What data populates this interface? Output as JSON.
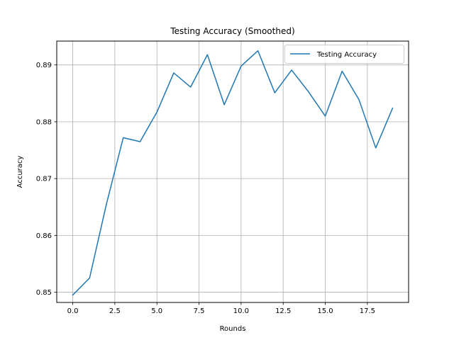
{
  "chart_data": {
    "type": "line",
    "title": "Testing Accuracy (Smoothed)",
    "xlabel": "Rounds",
    "ylabel": "Accuracy",
    "grid": true,
    "legend_position": "top-right",
    "xlim": [
      -0.95,
      19.95
    ],
    "ylim": [
      0.8482,
      0.8942
    ],
    "x_ticks": [
      0.0,
      2.5,
      5.0,
      7.5,
      10.0,
      12.5,
      15.0,
      17.5
    ],
    "x_tick_labels": [
      "0.0",
      "2.5",
      "5.0",
      "7.5",
      "10.0",
      "12.5",
      "15.0",
      "17.5"
    ],
    "y_ticks": [
      0.85,
      0.86,
      0.87,
      0.88,
      0.89
    ],
    "y_tick_labels": [
      "0.85",
      "0.86",
      "0.87",
      "0.88",
      "0.89"
    ],
    "series": [
      {
        "name": "Testing Accuracy",
        "color": "#1f77b4",
        "x": [
          0,
          1,
          2,
          3,
          4,
          5,
          6,
          7,
          8,
          9,
          10,
          11,
          12,
          13,
          14,
          15,
          16,
          17,
          18,
          19
        ],
        "y": [
          0.8495,
          0.8525,
          0.8655,
          0.8772,
          0.8765,
          0.8817,
          0.8886,
          0.8861,
          0.8918,
          0.883,
          0.8898,
          0.8925,
          0.8851,
          0.8891,
          0.8853,
          0.881,
          0.8889,
          0.8839,
          0.8754,
          0.8824
        ]
      }
    ]
  }
}
